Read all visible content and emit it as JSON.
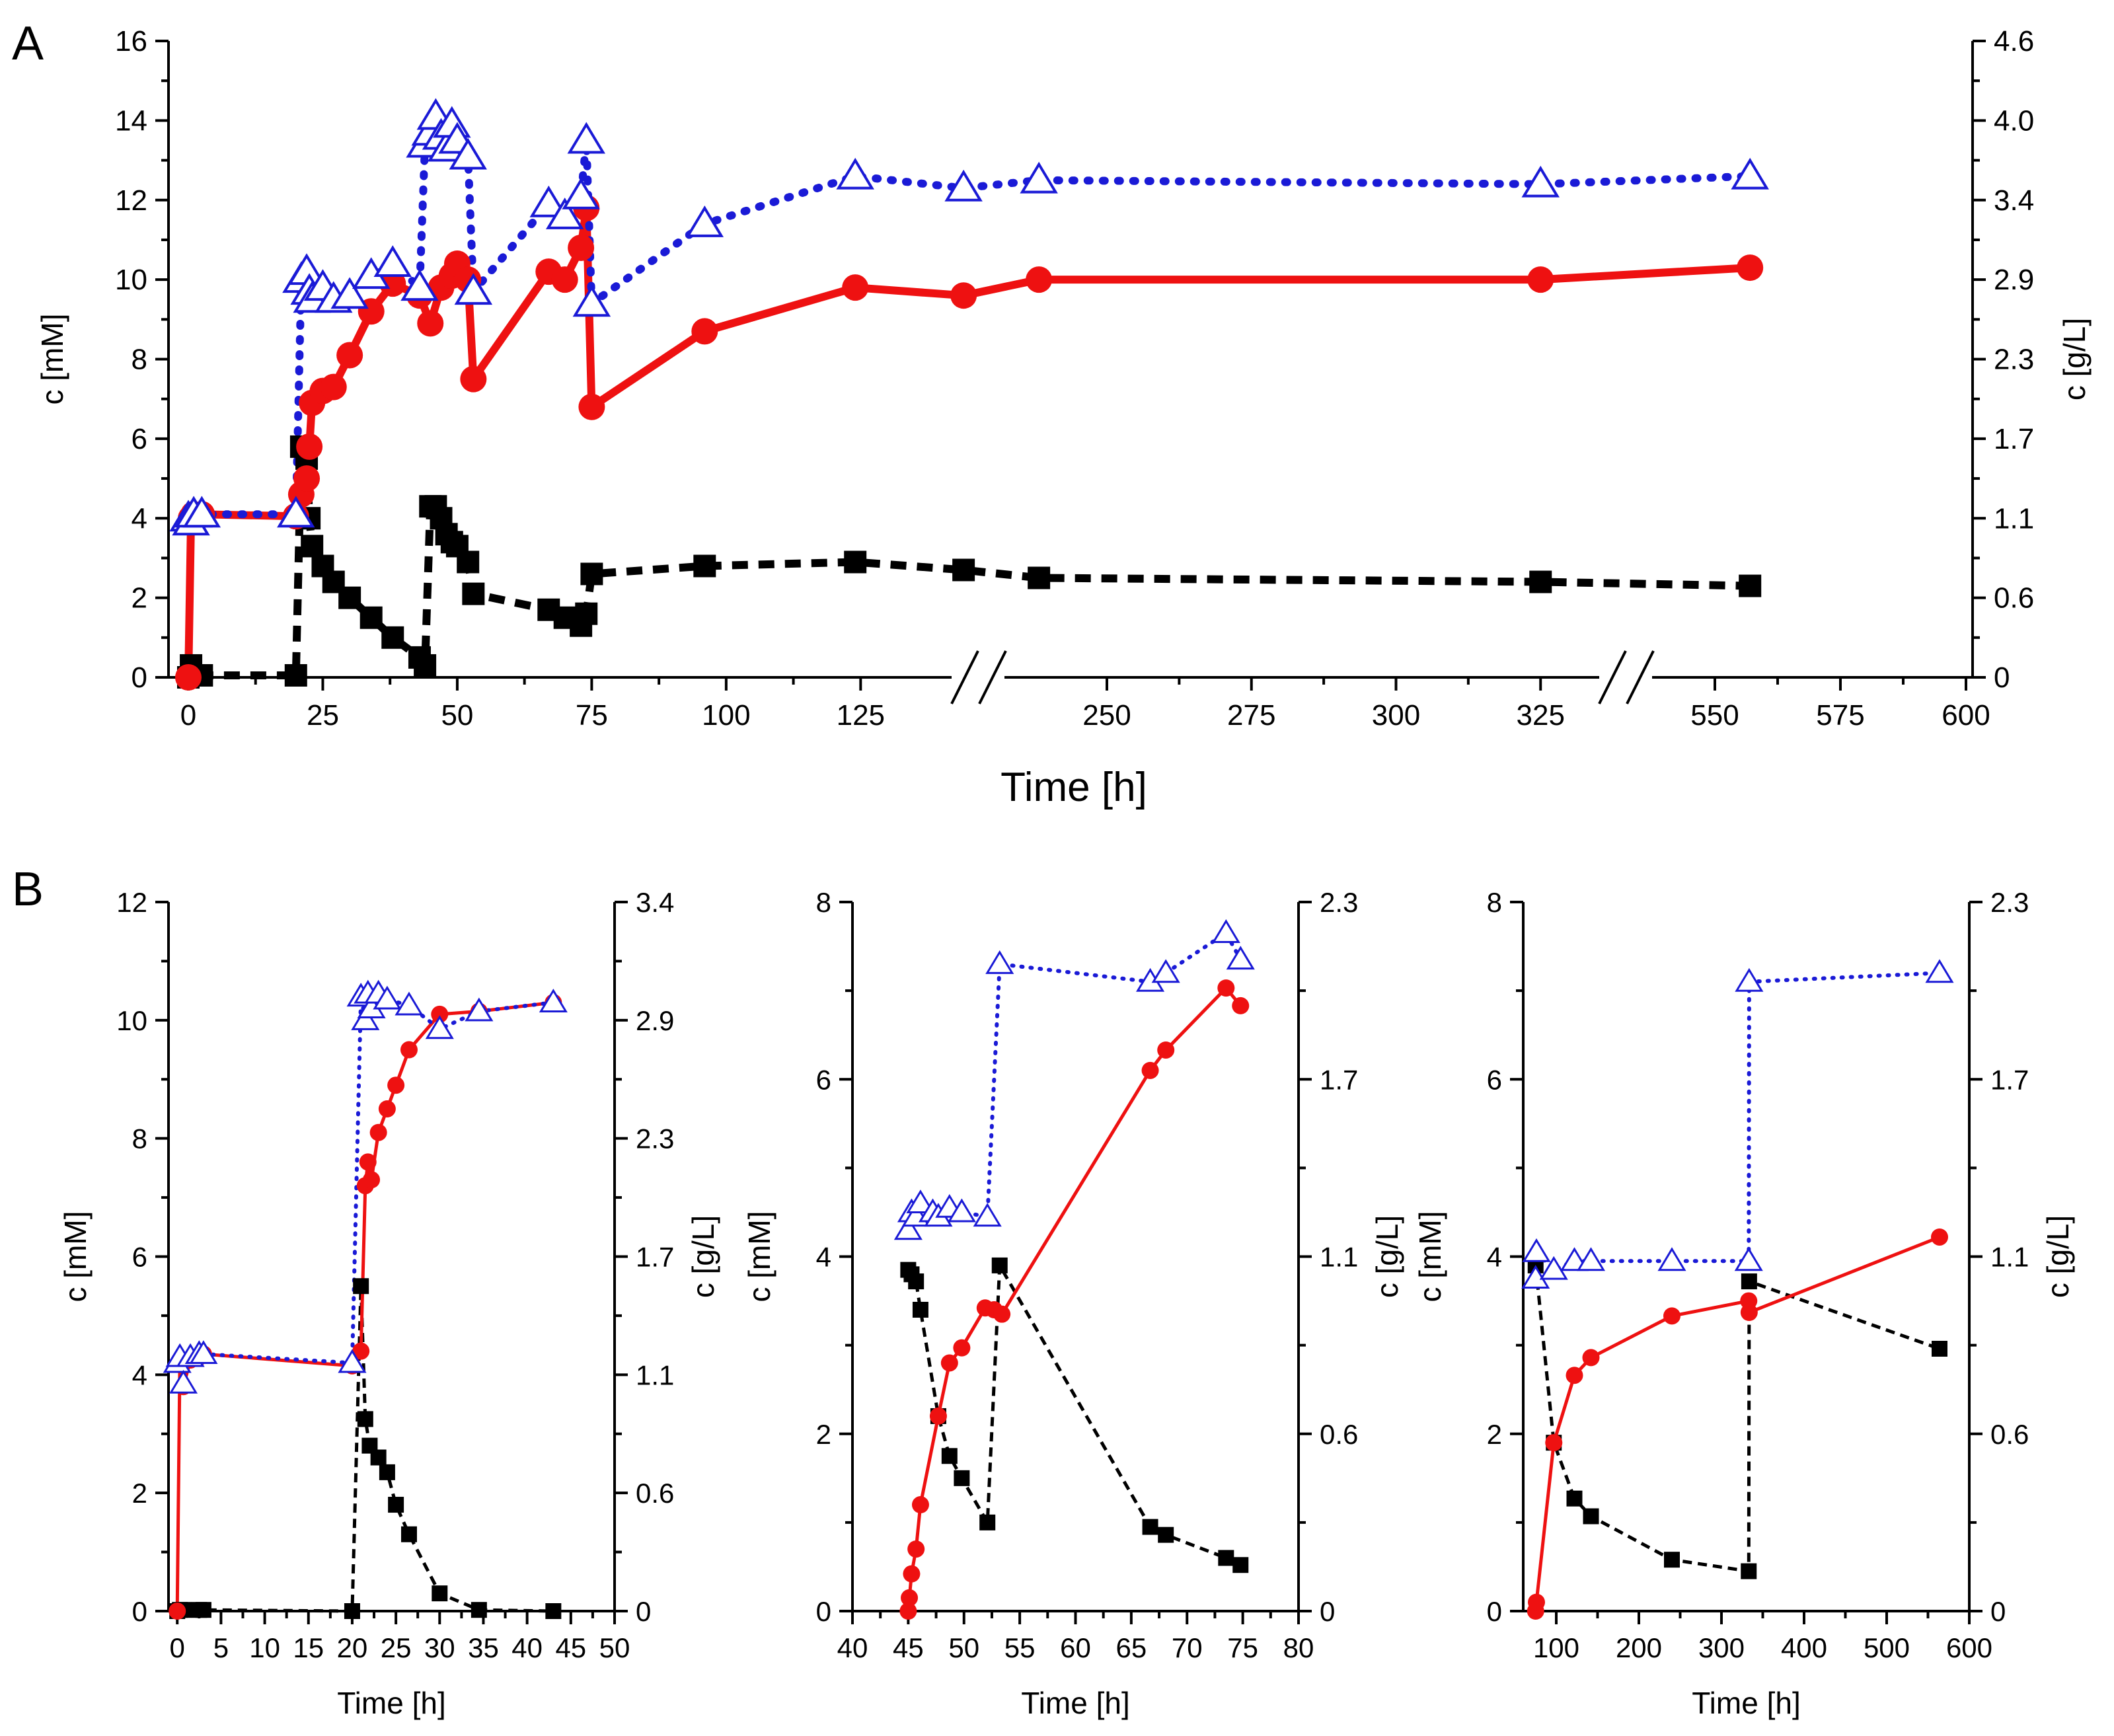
{
  "figure": {
    "panel_a_label": "A",
    "panel_b_label": "B"
  },
  "colors": {
    "red_series": "#ee1111",
    "blue_series": "#1a1ad6",
    "black_series": "#000000"
  },
  "chart_data": [
    {
      "id": "A",
      "type": "line",
      "xlabel": "Time [h]",
      "ylabel": "c [mM]",
      "ylabel_right": "c [g/L]",
      "ylim": [
        0,
        16
      ],
      "yticks": [
        0,
        2,
        4,
        6,
        8,
        10,
        12,
        14,
        16
      ],
      "right_ticks": [
        "0",
        "0.6",
        "1.1",
        "1.7",
        "2.3",
        "2.9",
        "3.4",
        "4.0",
        "4.6"
      ],
      "xlim": [
        0,
        600
      ],
      "xticks": [
        "0",
        "25",
        "50",
        "75",
        "100",
        "125",
        "250",
        "275",
        "300",
        "325",
        "550",
        "575",
        "600"
      ],
      "axis_breaks": [
        "between 125 and 250",
        "between 325 and 550"
      ],
      "series": [
        {
          "name": "red circles",
          "marker": "circle",
          "line": "solid",
          "x": [
            0,
            0.5,
            1,
            2.5,
            20,
            21,
            22,
            22.5,
            23,
            25,
            27,
            30,
            34,
            38,
            43,
            45,
            47,
            49,
            50,
            52,
            53,
            67,
            70,
            73,
            74,
            75,
            96,
            124,
            140,
            160,
            325,
            557
          ],
          "y": [
            0,
            4.0,
            4.1,
            4.1,
            4.05,
            4.6,
            5.0,
            5.8,
            6.9,
            7.2,
            7.3,
            8.1,
            9.2,
            9.9,
            9.6,
            8.9,
            9.8,
            10.1,
            10.4,
            10.0,
            7.5,
            10.2,
            10.0,
            10.8,
            11.8,
            6.8,
            8.7,
            9.8,
            9.6,
            10.0,
            10.0,
            10.3
          ]
        },
        {
          "name": "blue open triangles",
          "marker": "triangle",
          "line": "dotted",
          "x": [
            0,
            0.5,
            1,
            2.5,
            20,
            21,
            22,
            22.5,
            23,
            25,
            27,
            30,
            34,
            38,
            43,
            44,
            45,
            46,
            47,
            48,
            49,
            50,
            52,
            53,
            67,
            70,
            73,
            74,
            75,
            96,
            124,
            140,
            160,
            325,
            557
          ],
          "y": [
            4.0,
            3.9,
            4.1,
            4.1,
            4.1,
            10.0,
            10.2,
            9.7,
            9.5,
            9.8,
            9.5,
            9.6,
            10.1,
            10.4,
            9.8,
            13.4,
            13.7,
            14.1,
            13.6,
            13.3,
            13.9,
            13.5,
            13.1,
            9.7,
            11.9,
            11.6,
            12.1,
            13.5,
            9.4,
            11.4,
            12.6,
            12.3,
            12.5,
            12.4,
            12.6
          ]
        },
        {
          "name": "black squares",
          "marker": "square",
          "line": "dashed",
          "x": [
            0,
            0.5,
            1,
            2.5,
            20,
            21,
            22,
            22.5,
            23,
            25,
            27,
            30,
            34,
            38,
            43,
            44,
            45,
            46,
            47,
            48,
            49,
            50,
            52,
            53,
            67,
            70,
            73,
            74,
            75,
            96,
            124,
            140,
            160,
            325,
            557
          ],
          "y": [
            0,
            0.3,
            0.05,
            0.05,
            0.05,
            5.8,
            5.5,
            4.0,
            3.3,
            2.8,
            2.4,
            2.0,
            1.5,
            1.0,
            0.5,
            0.3,
            4.3,
            4.3,
            4.0,
            3.6,
            3.4,
            3.3,
            2.9,
            2.1,
            1.7,
            1.5,
            1.3,
            1.6,
            2.6,
            2.8,
            2.9,
            2.7,
            2.5,
            2.4,
            2.3
          ]
        }
      ]
    },
    {
      "id": "B1",
      "type": "line",
      "xlabel": "Time [h]",
      "ylabel": "c [mM]",
      "ylabel_right": "c [g/L]",
      "xlim": [
        -1,
        50
      ],
      "xticks": [
        0,
        5,
        10,
        15,
        20,
        25,
        30,
        35,
        40,
        45,
        50
      ],
      "ylim": [
        0,
        12
      ],
      "yticks": [
        0,
        2,
        4,
        6,
        8,
        10,
        12
      ],
      "right_ticks": [
        "0",
        "0.6",
        "1.1",
        "1.7",
        "2.3",
        "2.9",
        "3.4"
      ],
      "series": [
        {
          "name": "red circles",
          "marker": "circle",
          "line": "solid",
          "x": [
            0,
            0.3,
            0.7,
            1.5,
            2.5,
            3,
            20,
            21,
            21.5,
            21.8,
            22.2,
            23,
            24,
            25,
            26.5,
            30,
            34.5,
            43
          ],
          "y": [
            0,
            4.25,
            3.8,
            4.25,
            4.3,
            4.35,
            4.15,
            4.4,
            7.2,
            7.6,
            7.3,
            8.1,
            8.5,
            8.9,
            9.5,
            10.1,
            10.15,
            10.3
          ]
        },
        {
          "name": "blue open triangles",
          "marker": "triangle",
          "line": "dotted",
          "x": [
            0,
            0.3,
            0.7,
            1.5,
            2.5,
            3,
            20,
            21,
            21.5,
            21.8,
            22.2,
            23,
            24,
            26.5,
            30,
            34.5,
            43
          ],
          "y": [
            4.2,
            4.3,
            3.85,
            4.3,
            4.35,
            4.35,
            4.2,
            10.4,
            10.0,
            10.45,
            10.2,
            10.45,
            10.35,
            10.25,
            9.85,
            10.15,
            10.3
          ]
        },
        {
          "name": "black squares",
          "marker": "square",
          "line": "dashed",
          "x": [
            0,
            0.3,
            0.7,
            2.5,
            3,
            20,
            21,
            21.5,
            22,
            23,
            24,
            25,
            26.5,
            30,
            34.5,
            43
          ],
          "y": [
            0,
            0.02,
            0.02,
            0.02,
            0.02,
            0,
            5.5,
            3.25,
            2.8,
            2.6,
            2.35,
            1.8,
            1.3,
            0.3,
            0.02,
            0
          ]
        }
      ]
    },
    {
      "id": "B2",
      "type": "line",
      "xlabel": "Time [h]",
      "ylabel": "c [mM]",
      "ylabel_right": "c [g/L]",
      "xlim": [
        40,
        80
      ],
      "xticks": [
        40,
        45,
        50,
        55,
        60,
        65,
        70,
        75,
        80
      ],
      "ylim": [
        0,
        8
      ],
      "yticks": [
        0,
        2,
        4,
        6,
        8
      ],
      "right_ticks": [
        "0",
        "0.6",
        "1.1",
        "1.7",
        "2.3"
      ],
      "series": [
        {
          "name": "red circles",
          "marker": "circle",
          "line": "solid",
          "x": [
            45,
            45.1,
            45.3,
            45.7,
            46.1,
            47.7,
            48.7,
            49.8,
            51.9,
            52.7,
            53.4,
            66.7,
            68.1,
            73.5,
            74.8
          ],
          "y": [
            0,
            0.15,
            0.42,
            0.7,
            1.2,
            2.2,
            2.8,
            2.97,
            3.42,
            3.4,
            3.35,
            6.1,
            6.33,
            7.03,
            6.83
          ]
        },
        {
          "name": "blue open triangles",
          "marker": "triangle",
          "line": "dotted",
          "x": [
            45,
            45.3,
            45.7,
            46.1,
            47.2,
            47.7,
            48.7,
            49.8,
            52.1,
            53.2,
            66.7,
            68.1,
            73.5,
            74.8
          ],
          "y": [
            4.3,
            4.5,
            4.45,
            4.6,
            4.5,
            4.45,
            4.55,
            4.5,
            4.45,
            7.3,
            7.1,
            7.2,
            7.65,
            7.35
          ]
        },
        {
          "name": "black squares",
          "marker": "square",
          "line": "dashed",
          "x": [
            45,
            45.3,
            45.7,
            46.1,
            47.7,
            48.7,
            49.8,
            52.1,
            53.2,
            66.7,
            68.1,
            73.5,
            74.8
          ],
          "y": [
            3.85,
            3.8,
            3.72,
            3.4,
            2.2,
            1.75,
            1.5,
            1.0,
            3.9,
            0.95,
            0.86,
            0.6,
            0.52
          ]
        }
      ]
    },
    {
      "id": "B3",
      "type": "line",
      "xlabel": "Time [h]",
      "ylabel": "c [mM]",
      "ylabel_right": "c [g/L]",
      "xlim": [
        60,
        600
      ],
      "xticks": [
        100,
        200,
        300,
        400,
        500,
        600
      ],
      "ylim": [
        0,
        8
      ],
      "yticks": [
        0,
        2,
        4,
        6,
        8
      ],
      "right_ticks": [
        "0",
        "0.6",
        "1.1",
        "1.7",
        "2.3"
      ],
      "series": [
        {
          "name": "red circles",
          "marker": "circle",
          "line": "solid",
          "x": [
            75,
            76,
            97,
            122,
            142,
            240,
            333,
            333.5,
            564
          ],
          "y": [
            0,
            0.1,
            1.9,
            2.66,
            2.86,
            3.33,
            3.5,
            3.37,
            4.22
          ]
        },
        {
          "name": "blue open triangles",
          "marker": "triangle",
          "line": "dotted",
          "x": [
            75,
            76,
            97,
            122,
            142,
            240,
            333,
            333.5,
            564
          ],
          "y": [
            3.75,
            4.05,
            3.85,
            3.95,
            3.95,
            3.95,
            3.95,
            7.1,
            7.2
          ]
        },
        {
          "name": "black squares",
          "marker": "square",
          "line": "dashed",
          "x": [
            75,
            97,
            122,
            142,
            240,
            333,
            333.5,
            564
          ],
          "y": [
            3.9,
            1.9,
            1.27,
            1.07,
            0.58,
            0.45,
            3.72,
            2.96
          ]
        }
      ]
    }
  ]
}
